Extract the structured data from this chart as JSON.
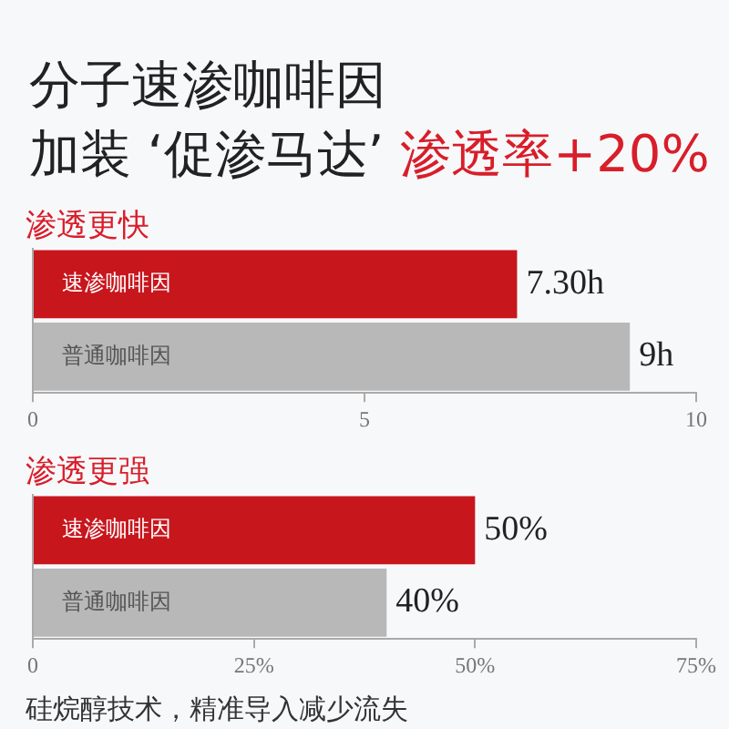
{
  "chart_data": [
    {
      "type": "other",
      "title": "分子速渗咖啡因",
      "subtitle": "加装 ‘促渗马达’",
      "annotations": [
        "渗透率+20%"
      ]
    },
    {
      "type": "bar",
      "orientation": "horizontal",
      "title": "渗透更快",
      "categories": [
        "速渗咖啡因",
        "普通咖啡因"
      ],
      "values": [
        7.3,
        9
      ],
      "colors": [
        "#c8161d",
        "#b8b8b8"
      ],
      "value_labels": [
        "7.30h",
        "9h"
      ],
      "xlim": [
        0,
        10
      ],
      "xticks": [
        0,
        5,
        10
      ],
      "tick_labels": "x"
    },
    {
      "type": "bar",
      "orientation": "horizontal",
      "title": "渗透更强",
      "categories": [
        "速渗咖啡因",
        "普通咖啡因"
      ],
      "values": [
        50,
        40
      ],
      "colors": [
        "#c8161d",
        "#b8b8b8"
      ],
      "value_labels": [
        "50%",
        "40%"
      ],
      "xlim": [
        0,
        75
      ],
      "xticks": [
        0,
        {
          "value": 25,
          "label": "25%"
        },
        {
          "value": 50,
          "label": "50%"
        },
        {
          "value": 75,
          "label": "75%"
        }
      ],
      "tick_labels": "x",
      "annotations": [
        "硅烷醇技术，精准导入减少流失"
      ]
    }
  ]
}
